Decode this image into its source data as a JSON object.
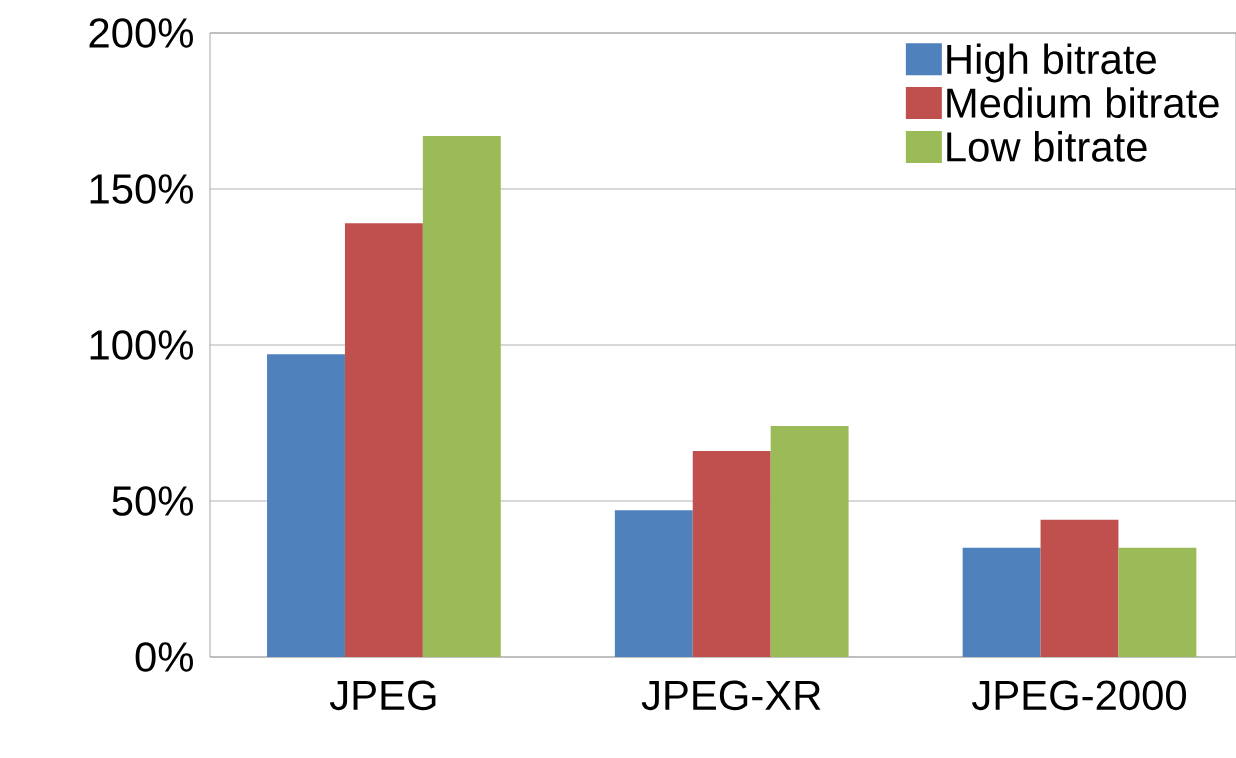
{
  "chart_data": {
    "type": "bar",
    "categories": [
      "JPEG",
      "JPEG-XR",
      "JPEG-2000"
    ],
    "series": [
      {
        "name": "High bitrate",
        "color": "#4f81bd",
        "values": [
          97,
          47,
          35
        ]
      },
      {
        "name": "Medium bitrate",
        "color": "#c0504d",
        "values": [
          139,
          66,
          44
        ]
      },
      {
        "name": "Low bitrate",
        "color": "#9bbb59",
        "values": [
          167,
          74,
          35
        ]
      }
    ],
    "ylim": [
      0,
      200
    ],
    "yticks": [
      {
        "value": 0,
        "label": "0%"
      },
      {
        "value": 50,
        "label": "50%"
      },
      {
        "value": 100,
        "label": "100%"
      },
      {
        "value": 150,
        "label": "150%"
      },
      {
        "value": 200,
        "label": "200%"
      }
    ],
    "grid": "y",
    "legend": "top right"
  }
}
